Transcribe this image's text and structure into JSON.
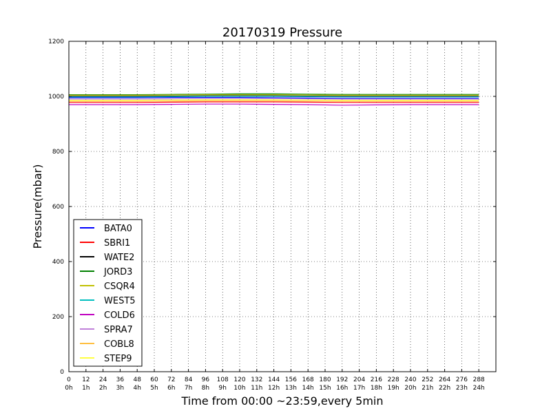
{
  "chart_data": {
    "type": "line",
    "title": "20170319 Pressure",
    "xlabel": "Time from 00:00 ~23:59,every 5min",
    "ylabel": "Pressure(mbar)",
    "xlim": [
      0,
      300
    ],
    "ylim": [
      0,
      1200
    ],
    "grid": true,
    "legend_position": "lower-left",
    "x_ticks": [
      0,
      12,
      24,
      36,
      48,
      60,
      72,
      84,
      96,
      108,
      120,
      132,
      144,
      156,
      168,
      180,
      192,
      204,
      216,
      228,
      240,
      252,
      264,
      276,
      288
    ],
    "x_tick_hours": [
      "0h",
      "1h",
      "2h",
      "3h",
      "4h",
      "5h",
      "6h",
      "7h",
      "8h",
      "9h",
      "10h",
      "11h",
      "12h",
      "13h",
      "14h",
      "15h",
      "16h",
      "17h",
      "18h",
      "19h",
      "20h",
      "21h",
      "22h",
      "23h",
      "24h"
    ],
    "y_ticks": [
      0,
      200,
      400,
      600,
      800,
      1000,
      1200
    ],
    "x": [
      0,
      24,
      48,
      72,
      96,
      120,
      144,
      168,
      192,
      216,
      240,
      264,
      288
    ],
    "series": [
      {
        "name": "BATA0",
        "color": "#0000ff",
        "values": [
          995,
          995,
          995,
          996,
          996,
          996,
          995,
          994,
          993,
          993,
          993,
          993,
          993
        ]
      },
      {
        "name": "SBRI1",
        "color": "#ff0000",
        "values": [
          978,
          978,
          978,
          979,
          980,
          980,
          980,
          979,
          978,
          978,
          978,
          978,
          978
        ]
      },
      {
        "name": "WATE2",
        "color": "#000000",
        "values": [
          1000,
          1000,
          1000,
          1001,
          1002,
          1002,
          1002,
          1001,
          1000,
          1000,
          1000,
          1000,
          1000
        ]
      },
      {
        "name": "JORD3",
        "color": "#008000",
        "values": [
          1006,
          1006,
          1006,
          1007,
          1008,
          1009,
          1009,
          1008,
          1007,
          1007,
          1007,
          1007,
          1007
        ]
      },
      {
        "name": "CSQR4",
        "color": "#bfbf00",
        "values": [
          1004,
          1004,
          1004,
          1005,
          1006,
          1006,
          1006,
          1005,
          1004,
          1004,
          1004,
          1004,
          1004
        ]
      },
      {
        "name": "WEST5",
        "color": "#00bfbf",
        "values": [
          998,
          998,
          998,
          999,
          1000,
          1000,
          1000,
          999,
          998,
          998,
          998,
          998,
          998
        ]
      },
      {
        "name": "COLD6",
        "color": "#bf00bf",
        "values": [
          970,
          970,
          970,
          971,
          972,
          972,
          971,
          970,
          968,
          969,
          970,
          970,
          970
        ]
      },
      {
        "name": "SPRA7",
        "color": "#bf7fd9",
        "values": [
          990,
          990,
          990,
          991,
          992,
          992,
          992,
          991,
          990,
          990,
          990,
          990,
          990
        ]
      },
      {
        "name": "COBL8",
        "color": "#ffbf40",
        "values": [
          982,
          982,
          982,
          983,
          984,
          984,
          984,
          983,
          982,
          982,
          982,
          982,
          982
        ]
      },
      {
        "name": "STEP9",
        "color": "#ffff40",
        "values": [
          986,
          986,
          986,
          987,
          988,
          988,
          988,
          987,
          986,
          986,
          986,
          986,
          986
        ]
      }
    ]
  }
}
